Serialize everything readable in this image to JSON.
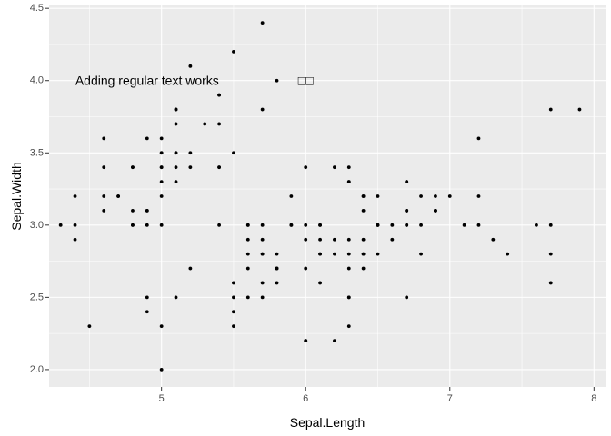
{
  "chart_data": {
    "type": "scatter",
    "title": "",
    "xlabel": "Sepal.Length",
    "ylabel": "Sepal.Width",
    "xlim": [
      4.22,
      8.08
    ],
    "ylim": [
      1.88,
      4.52
    ],
    "xticks": [
      5,
      6,
      7,
      8
    ],
    "xtick_labels": [
      "5",
      "6",
      "7",
      "8"
    ],
    "yticks": [
      2.0,
      2.5,
      3.0,
      3.5,
      4.0,
      4.5
    ],
    "ytick_labels": [
      "2.0",
      "2.5",
      "3.0",
      "3.5",
      "4.0",
      "4.5"
    ],
    "grid": true,
    "panel_background": "#ebebeb",
    "grid_color": "#ffffff",
    "point_color": "#000000",
    "points": [
      {
        "x": 5.1,
        "y": 3.5
      },
      {
        "x": 4.9,
        "y": 3.0
      },
      {
        "x": 4.7,
        "y": 3.2
      },
      {
        "x": 4.6,
        "y": 3.1
      },
      {
        "x": 5.0,
        "y": 3.6
      },
      {
        "x": 5.4,
        "y": 3.9
      },
      {
        "x": 4.6,
        "y": 3.4
      },
      {
        "x": 5.0,
        "y": 3.4
      },
      {
        "x": 4.4,
        "y": 2.9
      },
      {
        "x": 4.9,
        "y": 3.1
      },
      {
        "x": 5.4,
        "y": 3.7
      },
      {
        "x": 4.8,
        "y": 3.4
      },
      {
        "x": 4.8,
        "y": 3.0
      },
      {
        "x": 4.3,
        "y": 3.0
      },
      {
        "x": 5.8,
        "y": 4.0
      },
      {
        "x": 5.7,
        "y": 4.4
      },
      {
        "x": 5.4,
        "y": 3.9
      },
      {
        "x": 5.1,
        "y": 3.5
      },
      {
        "x": 5.7,
        "y": 3.8
      },
      {
        "x": 5.1,
        "y": 3.8
      },
      {
        "x": 5.4,
        "y": 3.4
      },
      {
        "x": 5.1,
        "y": 3.7
      },
      {
        "x": 4.6,
        "y": 3.6
      },
      {
        "x": 5.1,
        "y": 3.3
      },
      {
        "x": 4.8,
        "y": 3.4
      },
      {
        "x": 5.0,
        "y": 3.0
      },
      {
        "x": 5.0,
        "y": 3.4
      },
      {
        "x": 5.2,
        "y": 3.5
      },
      {
        "x": 5.2,
        "y": 3.4
      },
      {
        "x": 4.7,
        "y": 3.2
      },
      {
        "x": 4.8,
        "y": 3.1
      },
      {
        "x": 5.4,
        "y": 3.4
      },
      {
        "x": 5.2,
        "y": 4.1
      },
      {
        "x": 5.5,
        "y": 4.2
      },
      {
        "x": 4.9,
        "y": 3.1
      },
      {
        "x": 5.0,
        "y": 3.2
      },
      {
        "x": 5.5,
        "y": 3.5
      },
      {
        "x": 4.9,
        "y": 3.6
      },
      {
        "x": 4.4,
        "y": 3.0
      },
      {
        "x": 5.1,
        "y": 3.4
      },
      {
        "x": 5.0,
        "y": 3.5
      },
      {
        "x": 4.5,
        "y": 2.3
      },
      {
        "x": 4.4,
        "y": 3.2
      },
      {
        "x": 5.0,
        "y": 3.5
      },
      {
        "x": 5.1,
        "y": 3.8
      },
      {
        "x": 4.8,
        "y": 3.0
      },
      {
        "x": 5.1,
        "y": 3.8
      },
      {
        "x": 4.6,
        "y": 3.2
      },
      {
        "x": 5.3,
        "y": 3.7
      },
      {
        "x": 5.0,
        "y": 3.3
      },
      {
        "x": 7.0,
        "y": 3.2
      },
      {
        "x": 6.4,
        "y": 3.2
      },
      {
        "x": 6.9,
        "y": 3.1
      },
      {
        "x": 5.5,
        "y": 2.3
      },
      {
        "x": 6.5,
        "y": 2.8
      },
      {
        "x": 5.7,
        "y": 2.8
      },
      {
        "x": 6.3,
        "y": 3.3
      },
      {
        "x": 4.9,
        "y": 2.4
      },
      {
        "x": 6.6,
        "y": 2.9
      },
      {
        "x": 5.2,
        "y": 2.7
      },
      {
        "x": 5.0,
        "y": 2.0
      },
      {
        "x": 5.9,
        "y": 3.0
      },
      {
        "x": 6.0,
        "y": 2.2
      },
      {
        "x": 6.1,
        "y": 2.9
      },
      {
        "x": 5.6,
        "y": 2.9
      },
      {
        "x": 6.7,
        "y": 3.1
      },
      {
        "x": 5.6,
        "y": 3.0
      },
      {
        "x": 5.8,
        "y": 2.7
      },
      {
        "x": 6.2,
        "y": 2.2
      },
      {
        "x": 5.6,
        "y": 2.5
      },
      {
        "x": 5.9,
        "y": 3.2
      },
      {
        "x": 6.1,
        "y": 2.8
      },
      {
        "x": 6.3,
        "y": 2.5
      },
      {
        "x": 6.1,
        "y": 2.8
      },
      {
        "x": 6.4,
        "y": 2.9
      },
      {
        "x": 6.6,
        "y": 3.0
      },
      {
        "x": 6.8,
        "y": 2.8
      },
      {
        "x": 6.7,
        "y": 3.0
      },
      {
        "x": 6.0,
        "y": 2.9
      },
      {
        "x": 5.7,
        "y": 2.6
      },
      {
        "x": 5.5,
        "y": 2.4
      },
      {
        "x": 5.5,
        "y": 2.4
      },
      {
        "x": 5.8,
        "y": 2.7
      },
      {
        "x": 6.0,
        "y": 2.7
      },
      {
        "x": 5.4,
        "y": 3.0
      },
      {
        "x": 6.0,
        "y": 3.4
      },
      {
        "x": 6.7,
        "y": 3.1
      },
      {
        "x": 6.3,
        "y": 2.3
      },
      {
        "x": 5.6,
        "y": 3.0
      },
      {
        "x": 5.5,
        "y": 2.5
      },
      {
        "x": 5.5,
        "y": 2.6
      },
      {
        "x": 6.1,
        "y": 3.0
      },
      {
        "x": 5.8,
        "y": 2.6
      },
      {
        "x": 5.0,
        "y": 2.3
      },
      {
        "x": 5.6,
        "y": 2.7
      },
      {
        "x": 5.7,
        "y": 3.0
      },
      {
        "x": 5.7,
        "y": 2.9
      },
      {
        "x": 6.2,
        "y": 2.9
      },
      {
        "x": 5.1,
        "y": 2.5
      },
      {
        "x": 5.7,
        "y": 2.8
      },
      {
        "x": 6.3,
        "y": 3.3
      },
      {
        "x": 5.8,
        "y": 2.7
      },
      {
        "x": 7.1,
        "y": 3.0
      },
      {
        "x": 6.3,
        "y": 2.9
      },
      {
        "x": 6.5,
        "y": 3.0
      },
      {
        "x": 7.6,
        "y": 3.0
      },
      {
        "x": 4.9,
        "y": 2.5
      },
      {
        "x": 7.3,
        "y": 2.9
      },
      {
        "x": 6.7,
        "y": 2.5
      },
      {
        "x": 7.2,
        "y": 3.6
      },
      {
        "x": 6.5,
        "y": 3.2
      },
      {
        "x": 6.4,
        "y": 2.7
      },
      {
        "x": 6.8,
        "y": 3.0
      },
      {
        "x": 5.7,
        "y": 2.5
      },
      {
        "x": 5.8,
        "y": 2.8
      },
      {
        "x": 6.4,
        "y": 3.2
      },
      {
        "x": 6.5,
        "y": 3.0
      },
      {
        "x": 7.7,
        "y": 3.8
      },
      {
        "x": 7.7,
        "y": 2.6
      },
      {
        "x": 6.0,
        "y": 2.2
      },
      {
        "x": 6.9,
        "y": 3.2
      },
      {
        "x": 5.6,
        "y": 2.8
      },
      {
        "x": 7.7,
        "y": 2.8
      },
      {
        "x": 6.3,
        "y": 2.7
      },
      {
        "x": 6.7,
        "y": 3.3
      },
      {
        "x": 7.2,
        "y": 3.2
      },
      {
        "x": 6.2,
        "y": 2.8
      },
      {
        "x": 6.1,
        "y": 3.0
      },
      {
        "x": 6.4,
        "y": 2.8
      },
      {
        "x": 7.2,
        "y": 3.0
      },
      {
        "x": 7.4,
        "y": 2.8
      },
      {
        "x": 7.9,
        "y": 3.8
      },
      {
        "x": 6.4,
        "y": 2.8
      },
      {
        "x": 6.3,
        "y": 2.8
      },
      {
        "x": 6.1,
        "y": 2.6
      },
      {
        "x": 7.7,
        "y": 3.0
      },
      {
        "x": 6.3,
        "y": 3.4
      },
      {
        "x": 6.4,
        "y": 3.1
      },
      {
        "x": 6.0,
        "y": 3.0
      },
      {
        "x": 6.9,
        "y": 3.1
      },
      {
        "x": 6.7,
        "y": 3.1
      },
      {
        "x": 6.9,
        "y": 3.1
      },
      {
        "x": 5.8,
        "y": 2.7
      },
      {
        "x": 6.8,
        "y": 3.2
      },
      {
        "x": 6.7,
        "y": 3.3
      },
      {
        "x": 6.7,
        "y": 3.0
      },
      {
        "x": 6.3,
        "y": 2.5
      },
      {
        "x": 6.5,
        "y": 3.0
      },
      {
        "x": 6.2,
        "y": 3.4
      },
      {
        "x": 5.9,
        "y": 3.0
      }
    ],
    "annotations": [
      {
        "text": "Adding regular text works",
        "x": 4.9,
        "y": 4.0
      },
      {
        "text": "□□",
        "x": 6.0,
        "y": 4.0
      }
    ]
  }
}
